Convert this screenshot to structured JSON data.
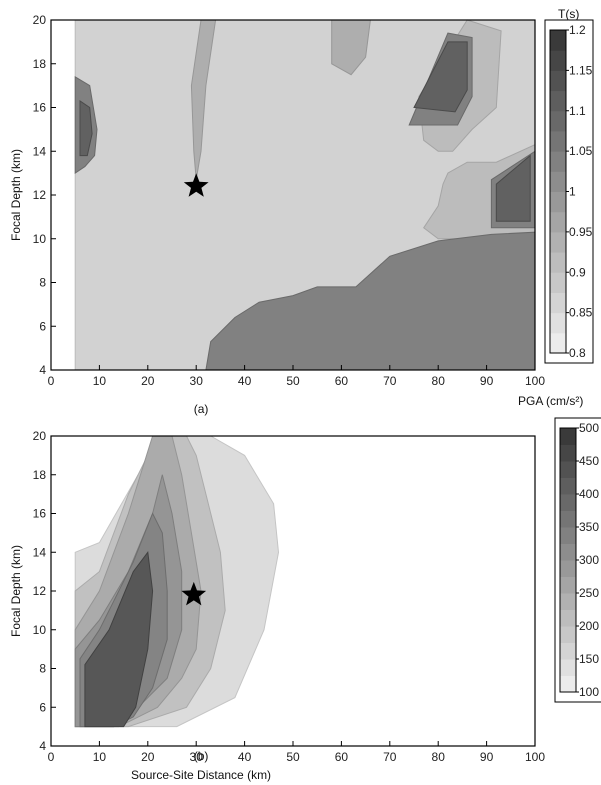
{
  "chart_data": [
    {
      "type": "contour",
      "panel_label": "(a)",
      "ylabel": "Focal Depth (km)",
      "xlim": [
        0,
        100
      ],
      "ylim": [
        4,
        20
      ],
      "x_ticks": [
        "0",
        "10",
        "20",
        "30",
        "40",
        "50",
        "60",
        "70",
        "80",
        "90",
        "100"
      ],
      "y_ticks": [
        "4",
        "6",
        "8",
        "10",
        "12",
        "14",
        "16",
        "18",
        "20"
      ],
      "colorbar": {
        "title": "T(s)",
        "ticks": [
          "0.8",
          "0.85",
          "0.9",
          "0.95",
          "1",
          "1.05",
          "1.1",
          "1.15",
          "1.2"
        ],
        "range": [
          0.8,
          1.22
        ]
      },
      "marker": {
        "shape": "star",
        "x": 30,
        "y": 12.4
      },
      "regions": [
        {
          "level": 0.87,
          "points": [
            [
              5,
              4
            ],
            [
              100,
              4
            ],
            [
              100,
              20
            ],
            [
              5,
              20
            ]
          ]
        },
        {
          "level": 0.95,
          "points": [
            [
              31,
              20
            ],
            [
              34,
              20
            ],
            [
              32,
              17
            ],
            [
              31,
              14
            ],
            [
              30,
              12.7
            ],
            [
              29.5,
              14
            ],
            [
              29,
              17
            ]
          ]
        },
        {
          "level": 0.95,
          "points": [
            [
              58,
              20
            ],
            [
              66,
              20
            ],
            [
              65,
              18.3
            ],
            [
              62,
              17.5
            ],
            [
              58,
              18
            ]
          ]
        },
        {
          "level": 0.92,
          "points": [
            [
              76,
              16.5
            ],
            [
              86,
              20
            ],
            [
              93,
              19.5
            ],
            [
              92,
              16
            ],
            [
              87,
              15
            ],
            [
              83,
              14
            ],
            [
              80,
              14
            ],
            [
              77,
              14.5
            ]
          ]
        },
        {
          "level": 0.92,
          "points": [
            [
              82,
              13
            ],
            [
              86,
              13.5
            ],
            [
              92,
              13.5
            ],
            [
              100,
              14.3
            ],
            [
              100,
              9.8
            ],
            [
              91,
              10
            ],
            [
              80,
              10
            ],
            [
              77,
              10.5
            ],
            [
              80,
              11.5
            ],
            [
              81,
              12.5
            ]
          ]
        },
        {
          "level": 1.05,
          "points": [
            [
              32,
              4
            ],
            [
              100,
              4
            ],
            [
              100,
              10.3
            ],
            [
              91,
              10.2
            ],
            [
              80,
              9.9
            ],
            [
              70,
              9.2
            ],
            [
              63,
              7.8
            ],
            [
              55,
              7.8
            ],
            [
              50,
              7.4
            ],
            [
              43,
              7.1
            ],
            [
              38,
              6.4
            ],
            [
              33,
              5.3
            ]
          ]
        },
        {
          "level": 1.05,
          "points": [
            [
              5,
              13
            ],
            [
              5,
              17.4
            ],
            [
              8,
              17
            ],
            [
              9.5,
              15
            ],
            [
              9,
              13.8
            ],
            [
              7,
              13.3
            ]
          ]
        },
        {
          "level": 1.05,
          "points": [
            [
              74,
              15.2
            ],
            [
              82,
              19.4
            ],
            [
              87,
              19.2
            ],
            [
              87,
              16.5
            ],
            [
              84,
              15.2
            ]
          ]
        },
        {
          "level": 1.05,
          "points": [
            [
              91,
              10.5
            ],
            [
              91,
              12.7
            ],
            [
              100,
              14
            ],
            [
              100,
              10.5
            ]
          ]
        },
        {
          "level": 1.12,
          "points": [
            [
              6,
              13.8
            ],
            [
              6,
              16.3
            ],
            [
              8,
              16
            ],
            [
              8.5,
              14.8
            ],
            [
              7.5,
              13.8
            ]
          ]
        },
        {
          "level": 1.12,
          "points": [
            [
              75,
              16
            ],
            [
              82,
              19
            ],
            [
              86,
              19
            ],
            [
              86,
              16.8
            ],
            [
              83.5,
              15.8
            ]
          ]
        },
        {
          "level": 1.12,
          "points": [
            [
              92,
              10.8
            ],
            [
              92,
              12.5
            ],
            [
              99,
              13.8
            ],
            [
              99,
              10.8
            ]
          ]
        }
      ]
    },
    {
      "type": "contour",
      "panel_label": "(b)",
      "xlabel": "Source-Site Distance (km)",
      "ylabel": "Focal Depth (km)",
      "xlim": [
        0,
        100
      ],
      "ylim": [
        4,
        20
      ],
      "x_ticks": [
        "0",
        "10",
        "20",
        "30",
        "40",
        "50",
        "60",
        "70",
        "80",
        "90",
        "100"
      ],
      "y_ticks": [
        "4",
        "6",
        "8",
        "10",
        "12",
        "14",
        "16",
        "18",
        "20"
      ],
      "colorbar": {
        "title": "PGA (cm/s²)",
        "ticks": [
          "100",
          "150",
          "200",
          "250",
          "300",
          "350",
          "400",
          "450",
          "500"
        ],
        "range": [
          90,
          520
        ]
      },
      "marker": {
        "shape": "star",
        "x": 29.5,
        "y": 11.8
      },
      "regions": [
        {
          "level": 140,
          "points": [
            [
              5,
              5
            ],
            [
              26,
              5
            ],
            [
              38,
              6.5
            ],
            [
              44,
              10
            ],
            [
              47,
              14
            ],
            [
              46,
              16.5
            ],
            [
              40,
              19
            ],
            [
              33,
              20
            ],
            [
              25,
              20
            ],
            [
              18,
              18
            ],
            [
              10,
              14.5
            ],
            [
              5,
              14
            ]
          ]
        },
        {
          "level": 200,
          "points": [
            [
              5,
              5
            ],
            [
              16,
              5
            ],
            [
              28,
              6
            ],
            [
              33,
              8
            ],
            [
              36,
              11
            ],
            [
              35,
              14
            ],
            [
              32,
              17
            ],
            [
              30,
              19
            ],
            [
              28,
              20
            ],
            [
              22,
              20
            ],
            [
              16,
              17
            ],
            [
              10,
              13
            ],
            [
              5,
              12
            ]
          ]
        },
        {
          "level": 250,
          "points": [
            [
              5,
              5
            ],
            [
              14,
              5
            ],
            [
              22,
              6
            ],
            [
              27,
              7.5
            ],
            [
              30,
              9
            ],
            [
              31,
              12
            ],
            [
              29,
              15
            ],
            [
              27,
              18
            ],
            [
              25,
              20
            ],
            [
              21,
              20
            ],
            [
              16,
              16
            ],
            [
              10,
              12
            ],
            [
              5,
              10
            ]
          ]
        },
        {
          "level": 300,
          "points": [
            [
              5,
              5
            ],
            [
              13,
              5
            ],
            [
              18,
              6
            ],
            [
              24,
              7.5
            ],
            [
              27,
              10
            ],
            [
              27,
              13
            ],
            [
              25,
              16
            ],
            [
              23,
              18
            ],
            [
              21,
              16
            ],
            [
              16,
              13
            ],
            [
              10,
              10.5
            ],
            [
              5,
              9
            ]
          ]
        },
        {
          "level": 340,
          "points": [
            [
              6,
              5
            ],
            [
              13,
              5
            ],
            [
              17,
              5.5
            ],
            [
              21,
              7
            ],
            [
              24,
              9.5
            ],
            [
              24,
              12
            ],
            [
              23,
              15
            ],
            [
              21,
              16
            ],
            [
              17,
              13.5
            ],
            [
              10,
              10
            ],
            [
              6,
              8.5
            ]
          ]
        },
        {
          "level": 440,
          "points": [
            [
              7,
              5
            ],
            [
              15,
              5
            ],
            [
              17.5,
              6
            ],
            [
              20,
              9
            ],
            [
              21,
              12
            ],
            [
              20,
              14
            ],
            [
              17,
              13
            ],
            [
              12,
              10
            ],
            [
              7,
              8.2
            ]
          ]
        }
      ]
    }
  ]
}
